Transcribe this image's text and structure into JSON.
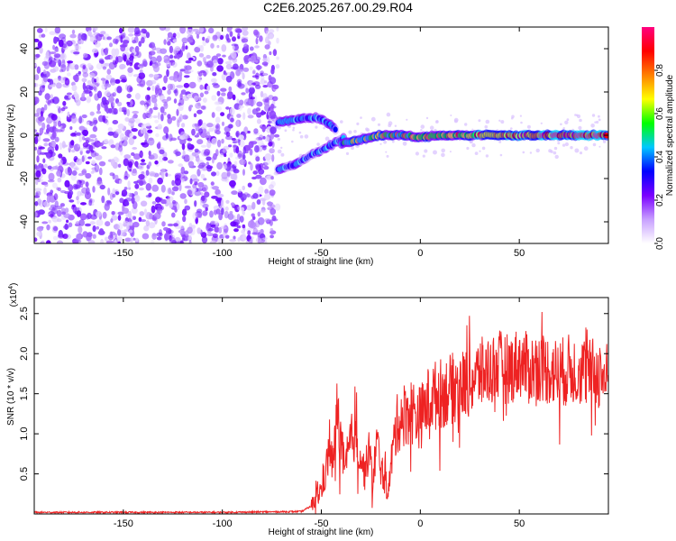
{
  "title": "C2E6.2025.267.00.29.R04",
  "chart_data": [
    {
      "type": "heatmap",
      "xlabel": "Height of straight line (km)",
      "ylabel": "Frequency (Hz)",
      "xlim": [
        -195,
        95
      ],
      "ylim": [
        -50,
        50
      ],
      "xticks": [
        -150,
        -100,
        -50,
        0,
        50
      ],
      "yticks": [
        -40,
        -20,
        0,
        20,
        40
      ],
      "colorbar": {
        "label": "Normalized spectral amplitude",
        "range": [
          0,
          1
        ],
        "ticks": [
          "0.0",
          "0.2",
          "0.4",
          "0.6",
          "0.8"
        ],
        "colors": [
          "#ffffff",
          "#c8a0ff",
          "#7a00ff",
          "#0000ff",
          "#00c8ff",
          "#00ff00",
          "#ffff00",
          "#ff8000",
          "#ff0000",
          "#ff0080"
        ]
      },
      "features": {
        "noise_region_x": [
          -195,
          -72
        ],
        "upper_branch": {
          "x": [
            -72,
            -65,
            -58,
            -52,
            -47,
            -42
          ],
          "y": [
            6,
            7,
            8,
            8,
            6,
            2
          ]
        },
        "lower_branch": {
          "x": [
            -72,
            -62,
            -55,
            -48,
            -42,
            -38
          ],
          "y": [
            -16,
            -13,
            -9,
            -6,
            -3,
            -1
          ]
        },
        "main_trace": {
          "x": [
            -40,
            -30,
            -20,
            -10,
            0,
            10,
            20,
            30,
            40,
            50,
            60,
            70,
            80,
            90,
            95
          ],
          "y": [
            -4,
            -2,
            0,
            0,
            -1,
            0,
            0,
            0,
            0,
            0,
            0,
            0,
            0,
            0,
            0
          ]
        }
      }
    },
    {
      "type": "line",
      "xlabel": "Height of straight line (km)",
      "ylabel": "SNR (10 * v/v)",
      "yscale_label": "(x10",
      "yscale_exponent": "4",
      "xlim": [
        -195,
        95
      ],
      "ylim": [
        0,
        2.7
      ],
      "xticks": [
        -150,
        -100,
        -50,
        0,
        50
      ],
      "yticks": [
        "0.5",
        "1.0",
        "1.5",
        "2.0",
        "2.5"
      ],
      "series": [
        {
          "color": "#ee2222",
          "x": [
            -195,
            -100,
            -60,
            -55,
            -50,
            -48,
            -46,
            -44,
            -42,
            -40,
            -38,
            -36,
            -34,
            -32,
            -30,
            -28,
            -26,
            -24,
            -22,
            -20,
            -18,
            -16,
            -14,
            -12,
            -10,
            -5,
            0,
            5,
            10,
            15,
            20,
            25,
            30,
            35,
            40,
            45,
            50,
            55,
            60,
            65,
            70,
            75,
            80,
            85,
            90,
            95
          ],
          "y": [
            0.02,
            0.02,
            0.03,
            0.1,
            0.3,
            0.5,
            0.8,
            0.6,
            1.3,
            0.9,
            0.5,
            0.8,
            1.0,
            0.9,
            0.7,
            0.5,
            0.8,
            0.4,
            0.9,
            0.6,
            0.4,
            0.3,
            0.8,
            1.1,
            1.2,
            1.3,
            1.2,
            1.45,
            1.5,
            1.55,
            1.6,
            1.65,
            1.75,
            1.8,
            1.85,
            1.8,
            1.9,
            1.8,
            1.85,
            1.8,
            1.75,
            1.8,
            1.8,
            1.75,
            1.75,
            1.7
          ]
        }
      ]
    }
  ]
}
